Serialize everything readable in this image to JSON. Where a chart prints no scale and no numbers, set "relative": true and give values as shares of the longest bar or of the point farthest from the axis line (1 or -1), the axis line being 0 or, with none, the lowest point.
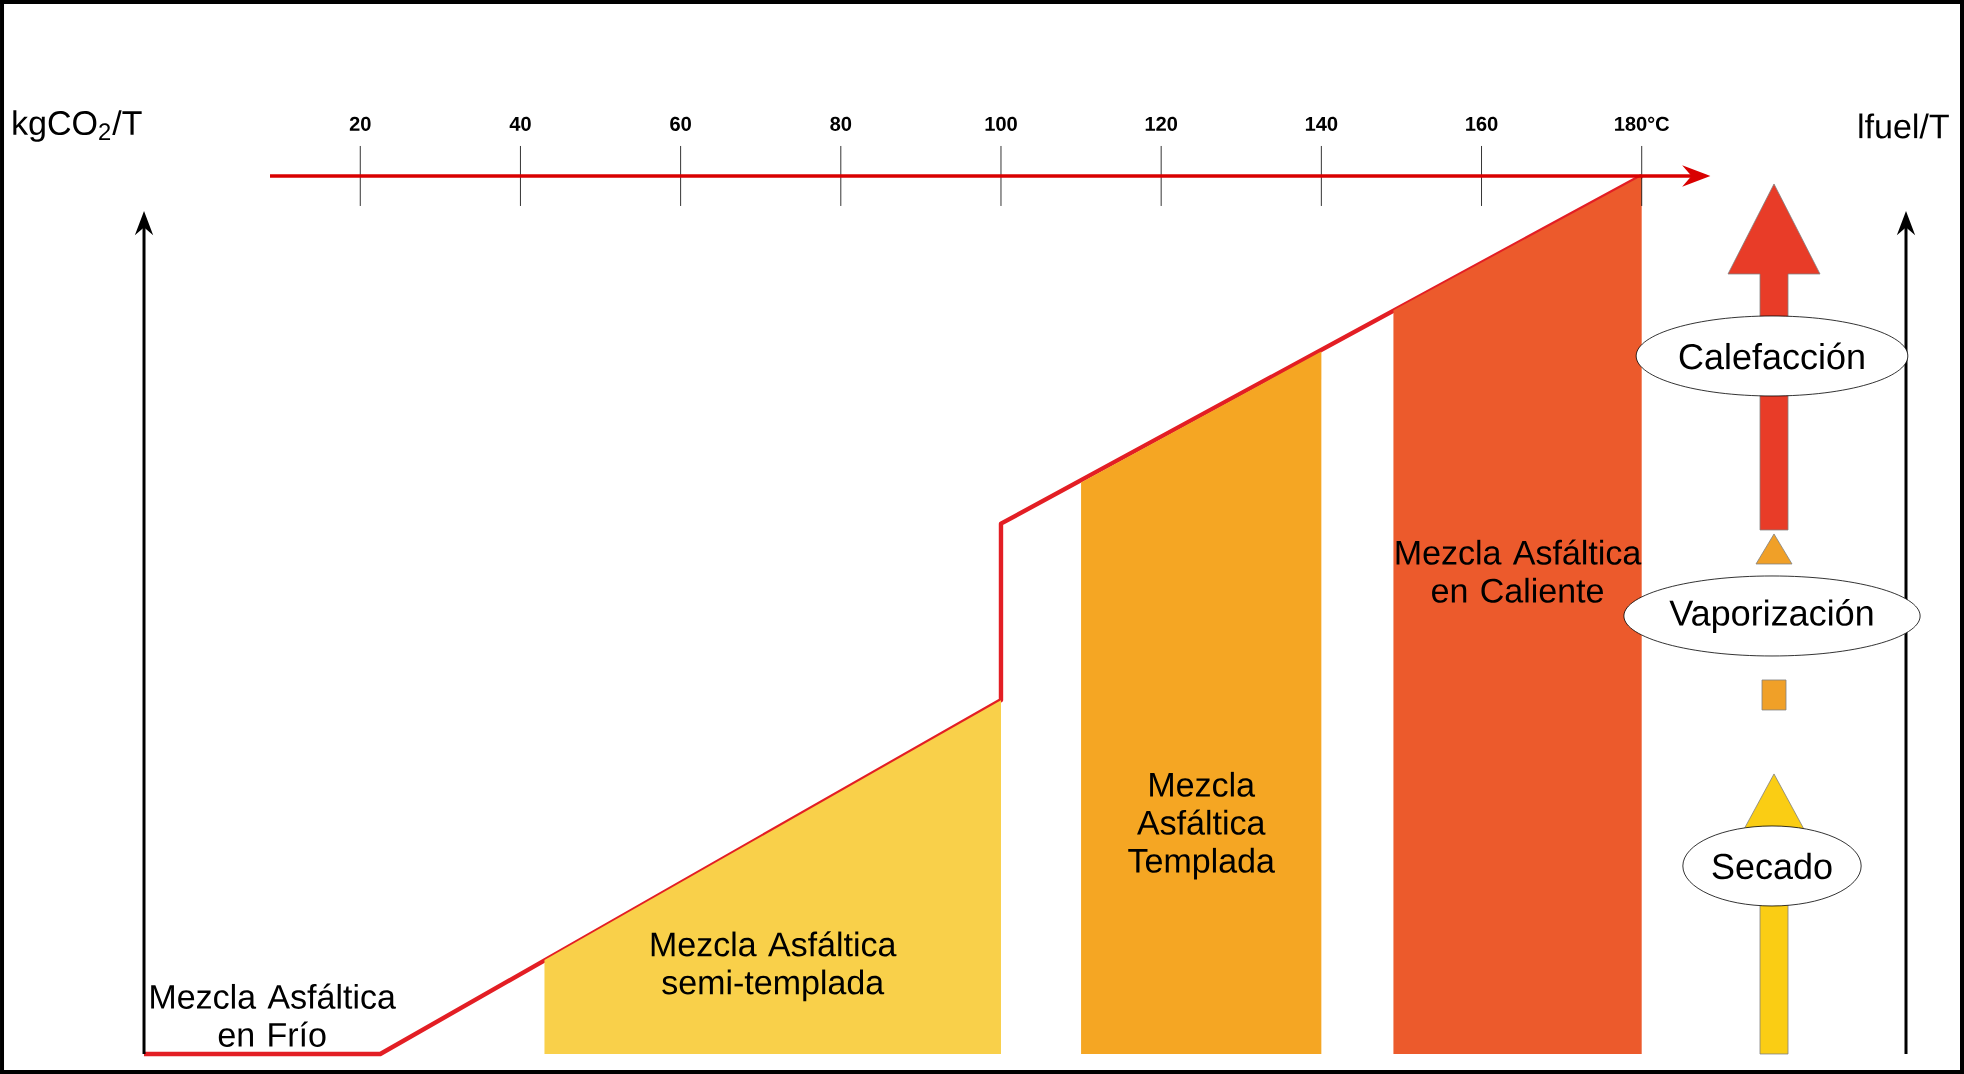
{
  "chart_data": {
    "type": "line",
    "relative": true,
    "xlabel": null,
    "ylabel": "kgCO$_{2}$/T",
    "y2label": "lfuel/T",
    "xlim": [
      -7,
      213
    ],
    "xticks": [
      20,
      40,
      60,
      80,
      100,
      120,
      140,
      {
        "value": 160,
        "label": "160"
      },
      {
        "value": 180,
        "label": "180°C"
      }
    ],
    "series": [
      {
        "color": "#e31e24",
        "x": [
          -7,
          22.5,
          100,
          100,
          180
        ],
        "values": [
          0,
          0,
          0.403,
          0.604,
          1
        ]
      },
      {
        "type": "area",
        "name": "Mezcla Asfáltica semi-templada",
        "color": "#f9d04a",
        "x": [
          43,
          100
        ],
        "values": [
          0.107,
          0.403
        ]
      },
      {
        "type": "area",
        "name": "Mezcla Asfáltica Templada",
        "color": "#f5a623",
        "x": [
          110,
          140
        ],
        "values": [
          0.651,
          0.8
        ]
      },
      {
        "type": "area",
        "name": "Mezcla Asfáltica en Caliente",
        "color": "#ec5a2c",
        "x": [
          149,
          180
        ],
        "values": [
          0.847,
          1
        ]
      }
    ],
    "annotations": [
      {
        "text": "Mezcla Asfáltica en Frío",
        "x": 9,
        "y": 0
      },
      "Calefacción",
      "Vaporización",
      "Secado"
    ],
    "grid": false
  }
}
